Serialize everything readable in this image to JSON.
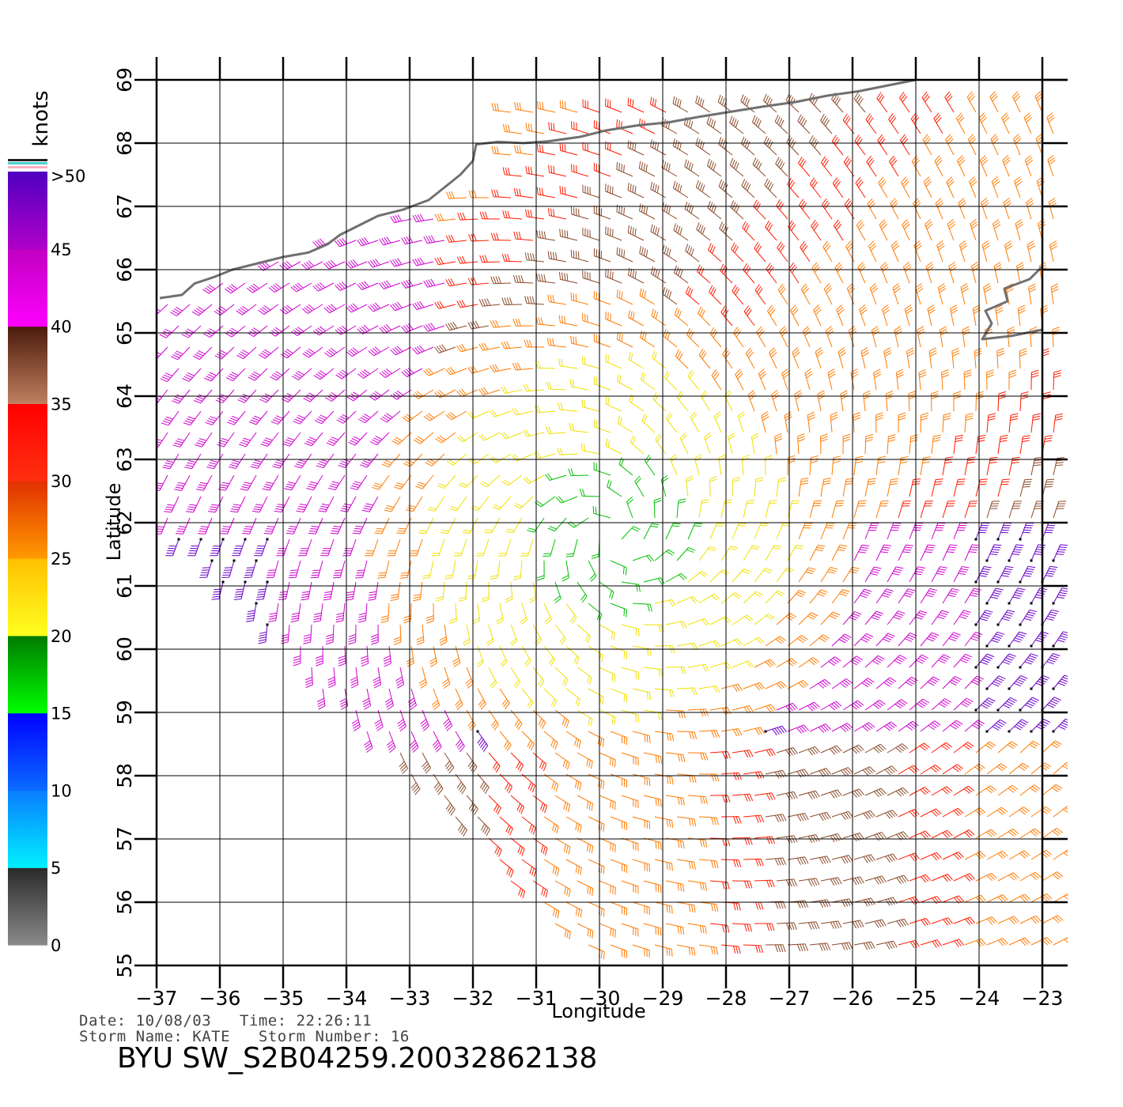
{
  "map": {
    "x_axis_label": "Longitude",
    "y_axis_label": "Latitude",
    "lon_ticks": [
      -37,
      -36,
      -35,
      -34,
      -33,
      -32,
      -31,
      -30,
      -29,
      -28,
      -27,
      -26,
      -25,
      -24,
      -23
    ],
    "lat_ticks": [
      55,
      56,
      57,
      58,
      59,
      60,
      61,
      62,
      63,
      64,
      65,
      66,
      67,
      68,
      69
    ],
    "lon_range": [
      -37,
      -23
    ],
    "lat_range": [
      55,
      69
    ],
    "coastline_color": "#707070",
    "grid": true
  },
  "colorbar": {
    "unit_label": "knots",
    "tick_labels": [
      "0",
      "5",
      "10",
      "15",
      "20",
      "25",
      "30",
      "35",
      "40",
      "45",
      ">50"
    ],
    "bands": [
      {
        "from": 0,
        "to": 5,
        "top_color": "#2a2a2a",
        "bottom_color": "#8a8a8a"
      },
      {
        "from": 5,
        "to": 10,
        "top_color": "#0a7dff",
        "bottom_color": "#00f0ff"
      },
      {
        "from": 10,
        "to": 15,
        "top_color": "#0000ff",
        "bottom_color": "#0a6cff"
      },
      {
        "from": 15,
        "to": 20,
        "top_color": "#007a00",
        "bottom_color": "#00ff00"
      },
      {
        "from": 20,
        "to": 25,
        "top_color": "#ffc000",
        "bottom_color": "#ffff20"
      },
      {
        "from": 25,
        "to": 30,
        "top_color": "#e03000",
        "bottom_color": "#ff9a00"
      },
      {
        "from": 30,
        "to": 35,
        "top_color": "#ff0000",
        "bottom_color": "#ff3010"
      },
      {
        "from": 35,
        "to": 40,
        "top_color": "#4a1a0a",
        "bottom_color": "#c08060"
      },
      {
        "from": 40,
        "to": 45,
        "top_color": "#c000c0",
        "bottom_color": "#ff00ff"
      },
      {
        "from": 45,
        "to": 50,
        "top_color": "#5000c0",
        "bottom_color": "#b000c8"
      }
    ]
  },
  "footer": {
    "date_line": "Date: 10/08/03   Time: 22:26:11",
    "storm_line": "Storm Name: KATE   Storm Number: 16",
    "file_title": "BYU SW_S2B04259.20032862138"
  }
}
